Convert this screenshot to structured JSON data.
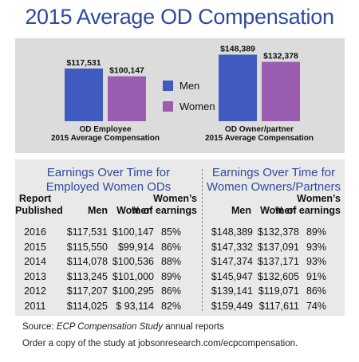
{
  "title": "2015 Average OD Compensation",
  "colors": {
    "title": "#2e4a9e",
    "men": "#3f5bbf",
    "women": "#9a5db0"
  },
  "chart_data": {
    "type": "bar",
    "categories": [
      [
        "OD Employee",
        "2015 Average Compensation"
      ],
      [
        "OD Owner/partner",
        "2015 Average Compensation"
      ]
    ],
    "series": [
      {
        "name": "Men",
        "values": [
          117531,
          148389
        ],
        "labels": [
          "$117,531",
          "$148,389"
        ]
      },
      {
        "name": "Women",
        "values": [
          100147,
          132378
        ],
        "labels": [
          "$100,147",
          "$132,378"
        ]
      }
    ],
    "ylim": [
      0,
      160000
    ],
    "grid": false,
    "legend": "center"
  },
  "employed": {
    "title": [
      "Earnings Over Time for",
      "Employed Women ODs"
    ],
    "headers": {
      "report": [
        "Report",
        "Published"
      ],
      "men": "Men",
      "women": "Women",
      "pct": [
        "Women’s",
        "% of earnings"
      ]
    },
    "rows": [
      {
        "year": "2016",
        "men": "$117,531",
        "women": "$100,147",
        "pct": "85%"
      },
      {
        "year": "2015",
        "men": "$115,550",
        "women": "$99,914",
        "pct": "86%"
      },
      {
        "year": "2014",
        "men": "$114,078",
        "women": "$100,536",
        "pct": "88%"
      },
      {
        "year": "2013",
        "men": "$113,245",
        "women": "$101,000",
        "pct": "89%"
      },
      {
        "year": "2012",
        "men": "$117,207",
        "women": "$100,295",
        "pct": "86%"
      },
      {
        "year": "2011",
        "men": "$114,025",
        "women": "$ 93,114",
        "pct": "82%"
      }
    ]
  },
  "owners": {
    "title": [
      "Earnings Over Time for",
      "Women Owners/Partners"
    ],
    "headers": {
      "men": "Men",
      "women": "Women",
      "pct": [
        "Women’s",
        "% of earnings"
      ]
    },
    "rows": [
      {
        "men": "$148,389",
        "women": "$132,378",
        "pct": "89%"
      },
      {
        "men": "$147,332",
        "women": "$137,091",
        "pct": "93%"
      },
      {
        "men": "$147,374",
        "women": "$137,171",
        "pct": "93%"
      },
      {
        "men": "$145,947",
        "women": "$132,605",
        "pct": "91%"
      },
      {
        "men": "$139,141",
        "women": "$119,071",
        "pct": "86%"
      },
      {
        "men": "$159,449",
        "women": "$117,611",
        "pct": "74%"
      }
    ]
  },
  "footer": {
    "source_prefix": "Source: ",
    "source_title": "ECP Compensation Study",
    "source_suffix": " annual reports",
    "order": "Order a copy of the study at jobsonresearch.com/ecpcompensation."
  }
}
